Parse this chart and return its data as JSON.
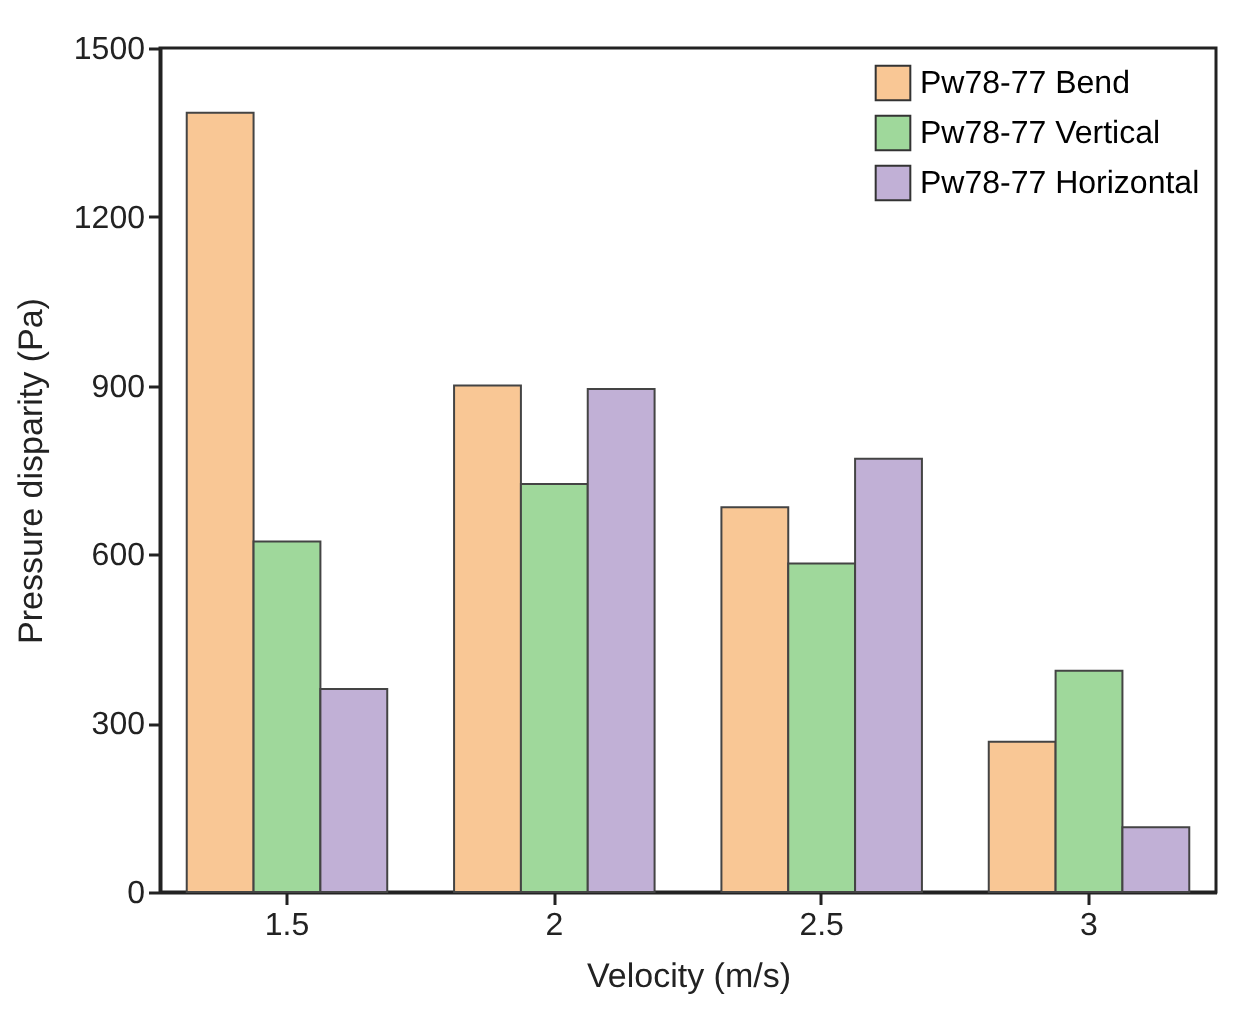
{
  "chart_data": {
    "type": "bar",
    "xlabel": "Velocity (m/s)",
    "ylabel": "Pressure disparity (Pa)",
    "categories": [
      "1.5",
      "2",
      "2.5",
      "3"
    ],
    "series": [
      {
        "name": "Pw78-77 Bend",
        "color": "#f9c795",
        "values": [
          1385,
          900,
          684,
          267
        ]
      },
      {
        "name": "Pw78-77 Vertical",
        "color": "#9fd89b",
        "values": [
          623,
          725,
          584,
          393
        ]
      },
      {
        "name": "Pw78-77 Horizontal",
        "color": "#c1b0d6",
        "values": [
          361,
          894,
          770,
          115
        ]
      }
    ],
    "ylim": [
      0,
      1500
    ],
    "yticks": [
      0,
      300,
      600,
      900,
      1200,
      1500
    ],
    "grid": false,
    "legend": "top right"
  }
}
